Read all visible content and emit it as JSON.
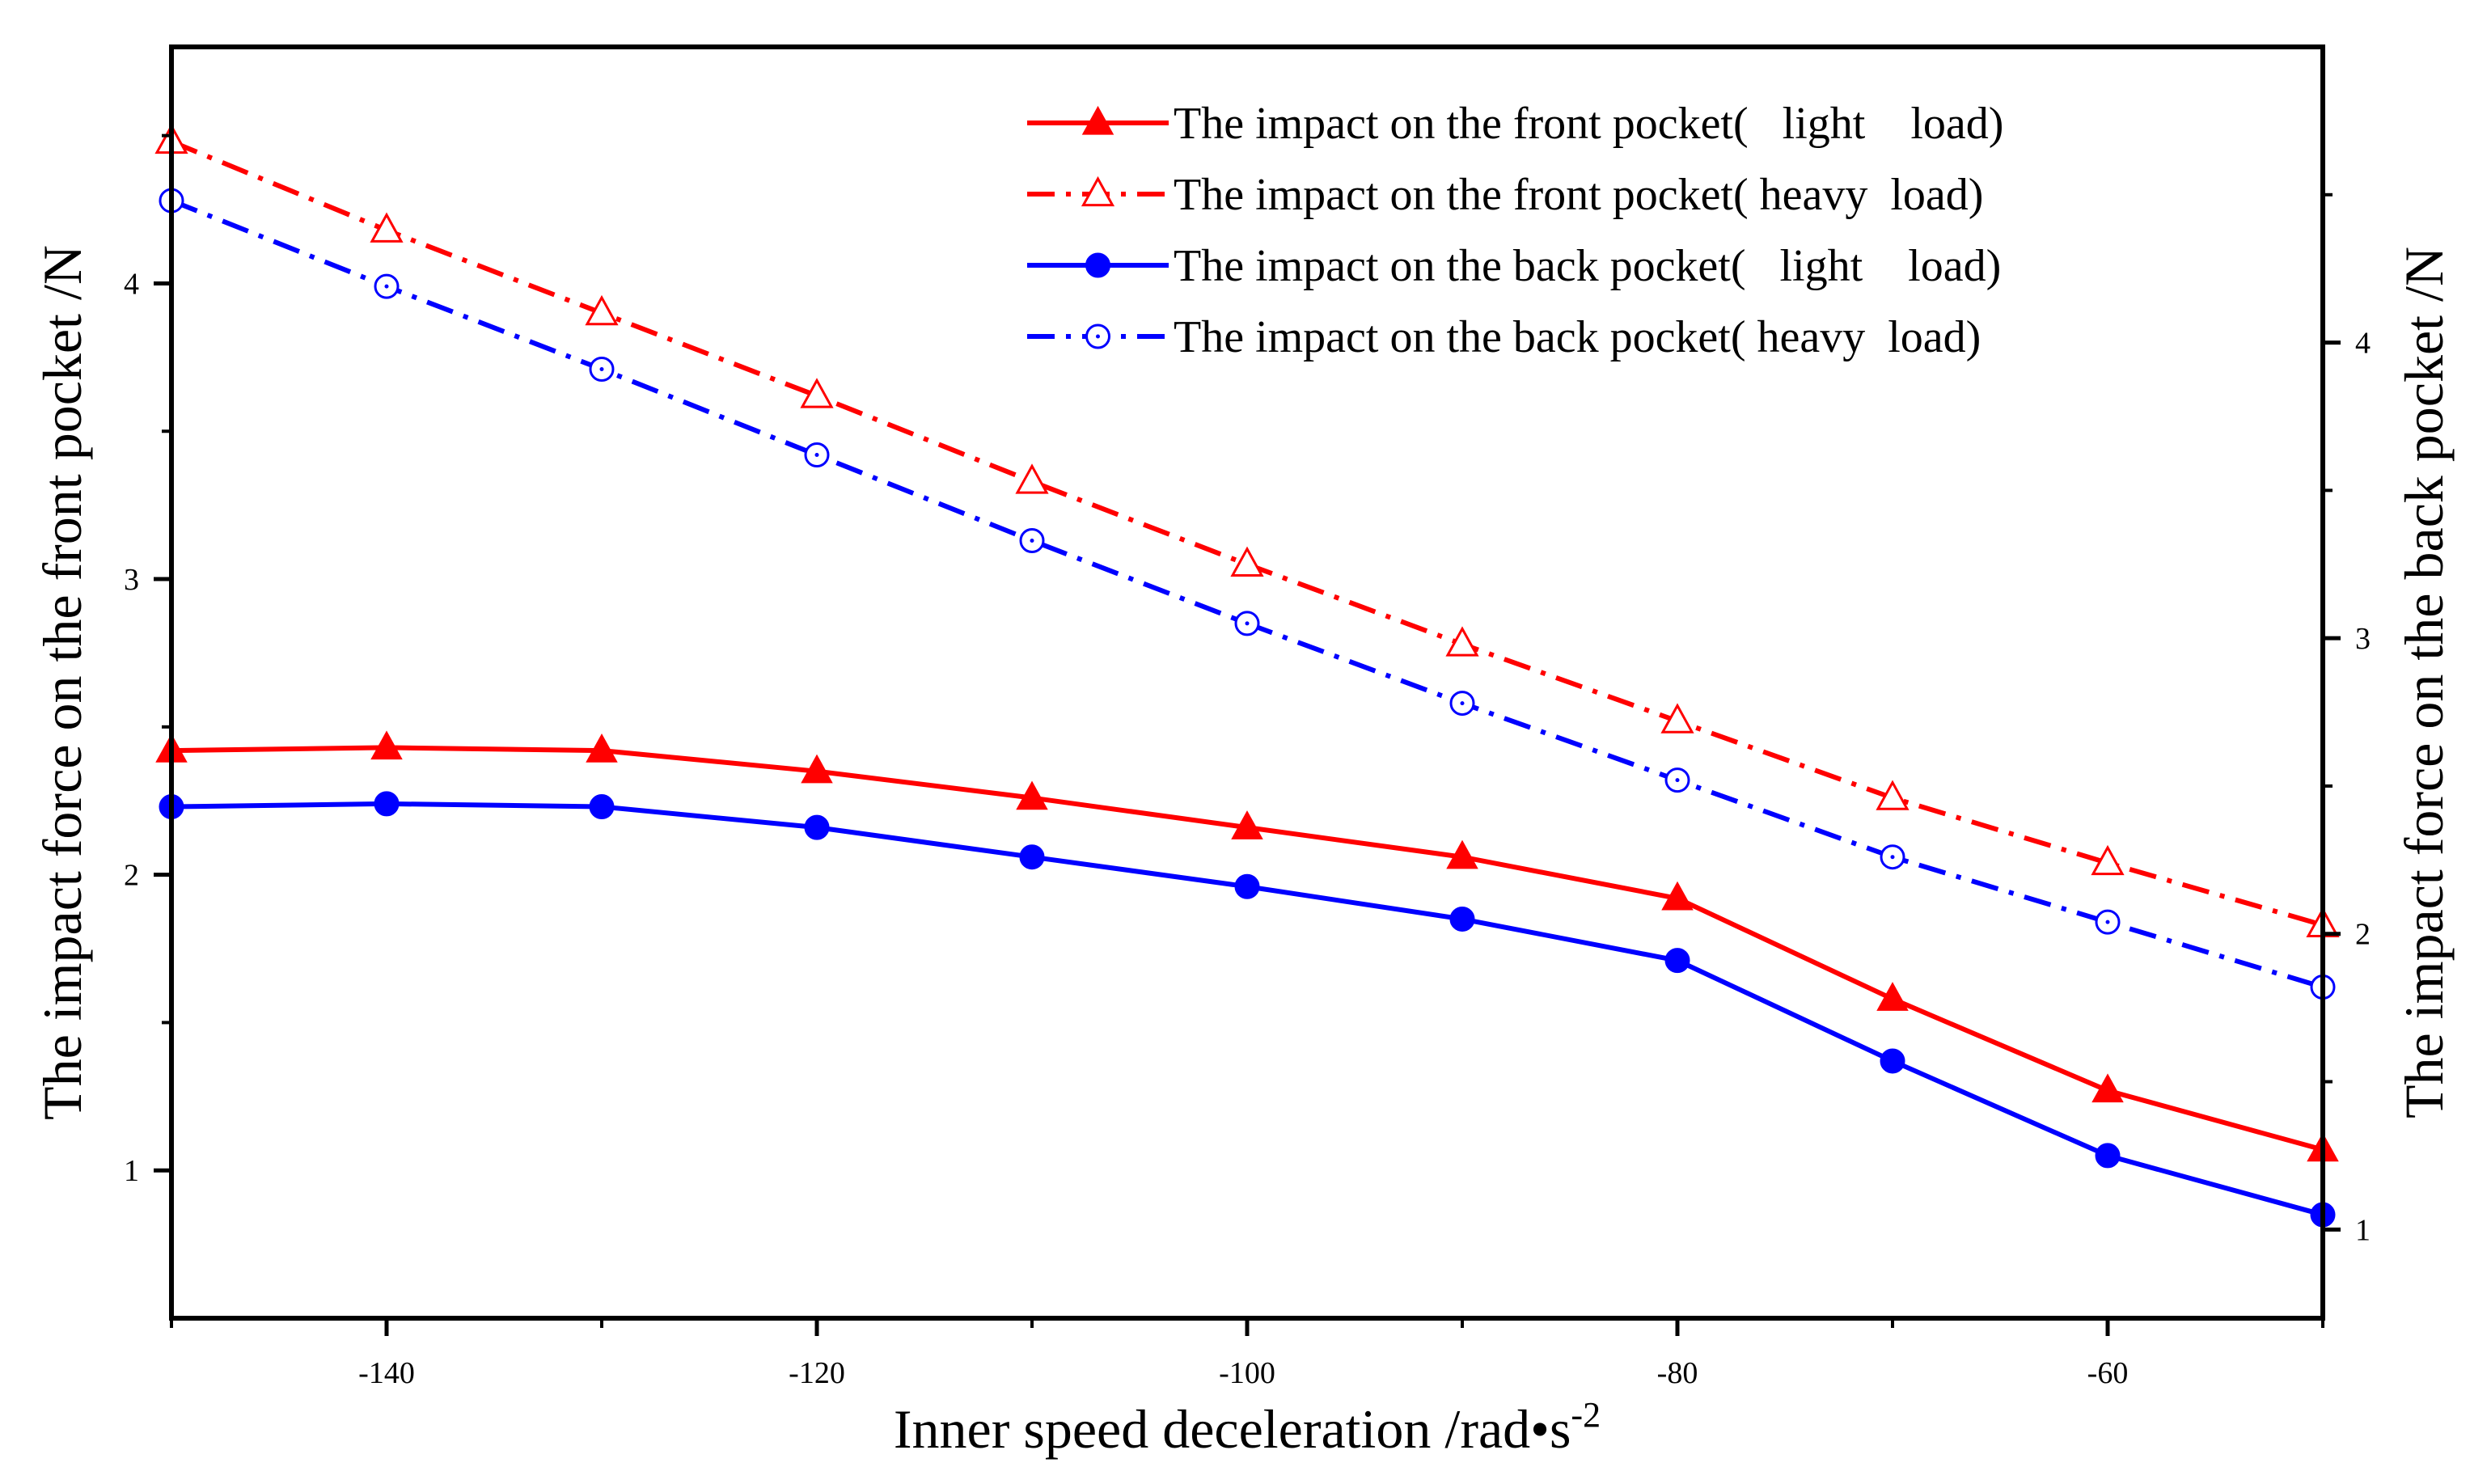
{
  "chart_data": {
    "type": "line",
    "xlabel": "Inner speed deceleration /rad•s",
    "xlabel_superscript": "-2",
    "ylabel_left": "The impact force on the front pocket /N",
    "ylabel_right": "The impact force on the back pocket /N",
    "xlim": [
      -150,
      -50
    ],
    "ylim_left": [
      0.5,
      4.8
    ],
    "ylim_right": [
      0.7,
      5.0
    ],
    "x_ticks": [
      -140,
      -120,
      -100,
      -80,
      -60
    ],
    "y_ticks_left": [
      1,
      2,
      3,
      4
    ],
    "y_ticks_right": [
      1,
      2,
      3,
      4
    ],
    "x": [
      -150,
      -140,
      -130,
      -120,
      -110,
      -100,
      -90,
      -80,
      -70,
      -60,
      -50
    ],
    "series": [
      {
        "name": "The impact on the front pocket(   light    load)",
        "axis": "left",
        "color": "#ff0000",
        "line_style": "solid",
        "marker": "triangle-filled",
        "values": [
          2.42,
          2.43,
          2.42,
          2.35,
          2.26,
          2.16,
          2.06,
          1.92,
          1.58,
          1.27,
          1.07
        ]
      },
      {
        "name": "The impact on the front pocket( heavy  load)",
        "axis": "left",
        "color": "#ff0000",
        "line_style": "dashdot",
        "marker": "triangle-open",
        "values": [
          4.48,
          4.18,
          3.9,
          3.62,
          3.33,
          3.05,
          2.78,
          2.52,
          2.26,
          2.04,
          1.83
        ]
      },
      {
        "name": "The impact on the back pocket(   light    load)",
        "axis": "right",
        "color": "#0000ff",
        "line_style": "solid",
        "marker": "circle-filled",
        "values": [
          2.43,
          2.44,
          2.43,
          2.36,
          2.26,
          2.16,
          2.05,
          1.91,
          1.57,
          1.25,
          1.05
        ]
      },
      {
        "name": "The impact on the back pocket( heavy  load)",
        "axis": "right",
        "color": "#0000ff",
        "line_style": "dashdot",
        "marker": "circle-open",
        "values": [
          4.48,
          4.19,
          3.91,
          3.62,
          3.33,
          3.05,
          2.78,
          2.52,
          2.26,
          2.04,
          1.82
        ]
      }
    ],
    "legend_position": "top-right",
    "grid": false
  }
}
